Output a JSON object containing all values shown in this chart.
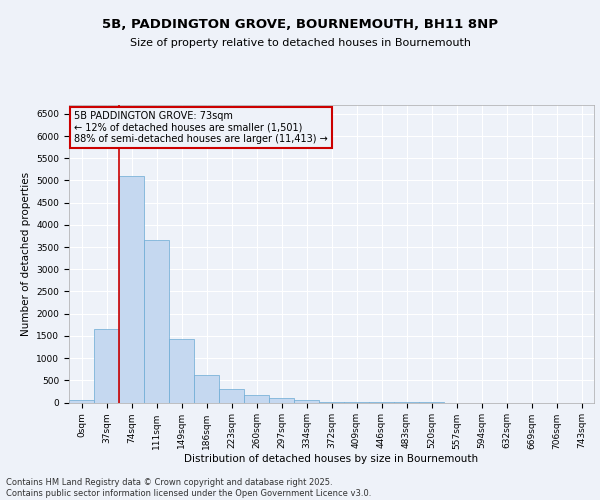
{
  "title_line1": "5B, PADDINGTON GROVE, BOURNEMOUTH, BH11 8NP",
  "title_line2": "Size of property relative to detached houses in Bournemouth",
  "xlabel": "Distribution of detached houses by size in Bournemouth",
  "ylabel": "Number of detached properties",
  "categories": [
    "0sqm",
    "37sqm",
    "74sqm",
    "111sqm",
    "149sqm",
    "186sqm",
    "223sqm",
    "260sqm",
    "297sqm",
    "334sqm",
    "372sqm",
    "409sqm",
    "446sqm",
    "483sqm",
    "520sqm",
    "557sqm",
    "594sqm",
    "632sqm",
    "669sqm",
    "706sqm",
    "743sqm"
  ],
  "bar_values": [
    50,
    1650,
    5100,
    3650,
    1430,
    610,
    300,
    160,
    110,
    50,
    20,
    10,
    4,
    2,
    1,
    0,
    0,
    0,
    0,
    0,
    0
  ],
  "bar_color": "#c5d8f0",
  "bar_edge_color": "#6aaad4",
  "vline_x_index": 2,
  "vline_color": "#cc0000",
  "annotation_text": "5B PADDINGTON GROVE: 73sqm\n← 12% of detached houses are smaller (1,501)\n88% of semi-detached houses are larger (11,413) →",
  "annotation_box_edge_color": "#cc0000",
  "ylim": [
    0,
    6700
  ],
  "yticks": [
    0,
    500,
    1000,
    1500,
    2000,
    2500,
    3000,
    3500,
    4000,
    4500,
    5000,
    5500,
    6000,
    6500
  ],
  "background_color": "#eef2f9",
  "grid_color": "#ffffff",
  "footnote": "Contains HM Land Registry data © Crown copyright and database right 2025.\nContains public sector information licensed under the Open Government Licence v3.0.",
  "title_fontsize": 9.5,
  "subtitle_fontsize": 8,
  "axis_label_fontsize": 7.5,
  "tick_fontsize": 6.5,
  "annotation_fontsize": 7,
  "footnote_fontsize": 6
}
